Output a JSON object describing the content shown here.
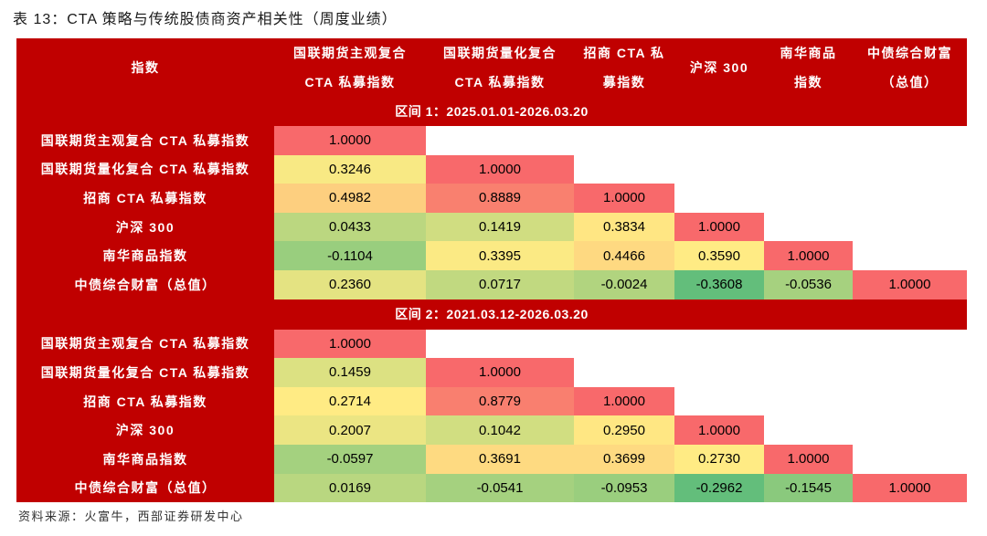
{
  "colors": {
    "header_bg": "#C00000",
    "header_text": "#FFFFFF",
    "scale_min": "#63BE7B",
    "scale_mid": "#FFEB84",
    "scale_max": "#F8696B"
  },
  "chart_data": {
    "type": "heatmap",
    "title": "表 13：CTA 策略与传统股债商资产相关性（周度业绩）",
    "corner_header": "指数",
    "column_headers": [
      [
        "国联期货主观复合",
        "CTA 私募指数"
      ],
      [
        "国联期货量化复合",
        "CTA 私募指数"
      ],
      [
        "招商 CTA 私",
        "募指数"
      ],
      [
        "沪深 300"
      ],
      [
        "南华商品",
        "指数"
      ],
      [
        "中债综合财富",
        "（总值）"
      ]
    ],
    "sections": [
      {
        "label": "区间 1：2025.01.01-2026.03.20",
        "rows": [
          {
            "label": "国联期货主观复合 CTA 私募指数",
            "values": [
              "1.0000"
            ]
          },
          {
            "label": "国联期货量化复合 CTA 私募指数",
            "values": [
              "0.3246",
              "1.0000"
            ]
          },
          {
            "label": "招商 CTA 私募指数",
            "values": [
              "0.4982",
              "0.8889",
              "1.0000"
            ]
          },
          {
            "label": "沪深 300",
            "values": [
              "0.0433",
              "0.1419",
              "0.3834",
              "1.0000"
            ]
          },
          {
            "label": "南华商品指数",
            "values": [
              "-0.1104",
              "0.3395",
              "0.4466",
              "0.3590",
              "1.0000"
            ]
          },
          {
            "label": "中债综合财富（总值）",
            "values": [
              "0.2360",
              "0.0717",
              "-0.0024",
              "-0.3608",
              "-0.0536",
              "1.0000"
            ]
          }
        ]
      },
      {
        "label": "区间 2：2021.03.12-2026.03.20",
        "rows": [
          {
            "label": "国联期货主观复合 CTA 私募指数",
            "values": [
              "1.0000"
            ]
          },
          {
            "label": "国联期货量化复合 CTA 私募指数",
            "values": [
              "0.1459",
              "1.0000"
            ]
          },
          {
            "label": "招商 CTA 私募指数",
            "values": [
              "0.2714",
              "0.8779",
              "1.0000"
            ]
          },
          {
            "label": "沪深 300",
            "values": [
              "0.2007",
              "0.1042",
              "0.2950",
              "1.0000"
            ]
          },
          {
            "label": "南华商品指数",
            "values": [
              "-0.0597",
              "0.3691",
              "0.3699",
              "0.2730",
              "1.0000"
            ]
          },
          {
            "label": "中债综合财富（总值）",
            "values": [
              "0.0169",
              "-0.0541",
              "-0.0953",
              "-0.2962",
              "-0.1545",
              "1.0000"
            ]
          }
        ]
      }
    ]
  },
  "source": "资料来源：火富牛，西部证券研发中心"
}
